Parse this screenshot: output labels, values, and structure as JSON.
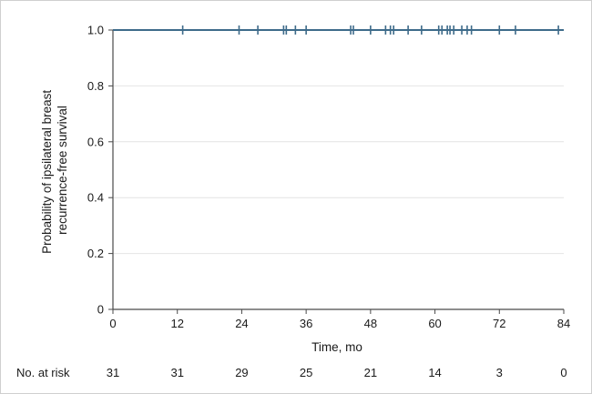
{
  "chart_data": {
    "type": "line",
    "title": "",
    "xlabel": "Time, mo",
    "ylabel_lines": [
      "Probability of ipsilateral breast",
      "recurrence-free survival"
    ],
    "xlim": [
      0,
      84
    ],
    "ylim": [
      0,
      1.0
    ],
    "x_ticks": [
      0,
      12,
      24,
      36,
      48,
      60,
      72,
      84
    ],
    "y_ticks": [
      {
        "value": 0,
        "label": "0"
      },
      {
        "value": 0.2,
        "label": "0.2"
      },
      {
        "value": 0.4,
        "label": "0.4"
      },
      {
        "value": 0.6,
        "label": "0.6"
      },
      {
        "value": 0.8,
        "label": "0.8"
      },
      {
        "value": 1.0,
        "label": "1.0"
      }
    ],
    "grid": true,
    "series": [
      {
        "x": [
          0,
          84
        ],
        "y": [
          1.0,
          1.0
        ],
        "censor_times": [
          13,
          23.5,
          27,
          31.8,
          32.3,
          34,
          36,
          44.3,
          44.8,
          48,
          50.8,
          51.7,
          52.3,
          55,
          57.5,
          60.7,
          61.3,
          62.3,
          62.8,
          63.5,
          65,
          66,
          66.8,
          72,
          75,
          83
        ]
      }
    ],
    "colors": {
      "line": "#3e6b8a",
      "grid": "#e4e4e4",
      "axis": "#4a4a4a"
    },
    "risk_table": {
      "label": "No. at risk",
      "times": [
        0,
        12,
        24,
        36,
        48,
        60,
        72,
        84
      ],
      "counts": [
        "31",
        "31",
        "29",
        "25",
        "21",
        "14",
        "3",
        "0"
      ]
    }
  }
}
